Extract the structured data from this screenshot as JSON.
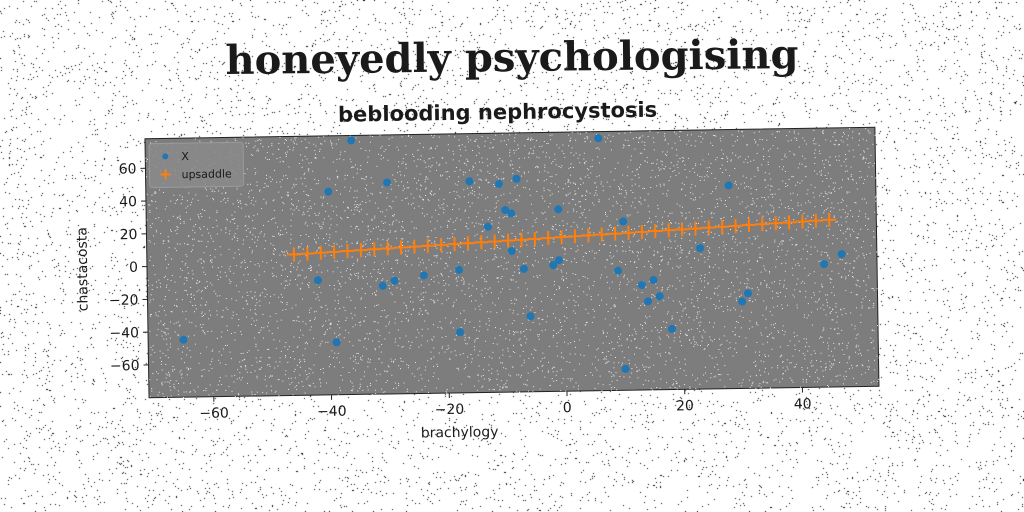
{
  "figure": {
    "suptitle": "honeyedly psychologising"
  },
  "chart_data": {
    "type": "scatter",
    "title": "beblooding nephrocystosis",
    "xlabel": "brachylogy",
    "ylabel": "chastacosta",
    "xlim": [
      -71,
      53
    ],
    "ylim": [
      -80,
      78
    ],
    "xticks": [
      -60,
      -40,
      -20,
      0,
      20,
      40
    ],
    "yticks": [
      -60,
      -40,
      -20,
      0,
      20,
      40,
      60
    ],
    "grid": false,
    "legend_position": "upper-left",
    "series": [
      {
        "name": "X",
        "marker": "dot",
        "color": "#1f77b4",
        "points": [
          [
            -65,
            -45
          ],
          [
            -42,
            -10
          ],
          [
            -40,
            44
          ],
          [
            -39,
            -48
          ],
          [
            -36,
            75
          ],
          [
            -31,
            -14
          ],
          [
            -30,
            49
          ],
          [
            -29,
            -11
          ],
          [
            -24,
            -8
          ],
          [
            -18,
            -5
          ],
          [
            -18,
            -43
          ],
          [
            -16,
            49
          ],
          [
            -13,
            21
          ],
          [
            -11,
            47
          ],
          [
            -10,
            31
          ],
          [
            -9,
            29
          ],
          [
            -9,
            6
          ],
          [
            -8,
            50
          ],
          [
            -7,
            -5
          ],
          [
            -6,
            -34
          ],
          [
            -2,
            -3
          ],
          [
            -1,
            31
          ],
          [
            -1,
            0
          ],
          [
            6,
            74
          ],
          [
            9,
            -7
          ],
          [
            10,
            23
          ],
          [
            10,
            -67
          ],
          [
            13,
            -16
          ],
          [
            14,
            -26
          ],
          [
            15,
            -13
          ],
          [
            16,
            -23
          ],
          [
            18,
            -43
          ],
          [
            23,
            6
          ],
          [
            28,
            44
          ],
          [
            30,
            -27
          ],
          [
            31,
            -22
          ],
          [
            44,
            -5
          ],
          [
            47,
            1
          ]
        ]
      },
      {
        "name": "upsaddle",
        "marker": "plus",
        "color": "#ff7f0e",
        "x_start": -46,
        "x_end": 45,
        "y_start": 6,
        "y_end": 22,
        "count": 41
      }
    ]
  }
}
